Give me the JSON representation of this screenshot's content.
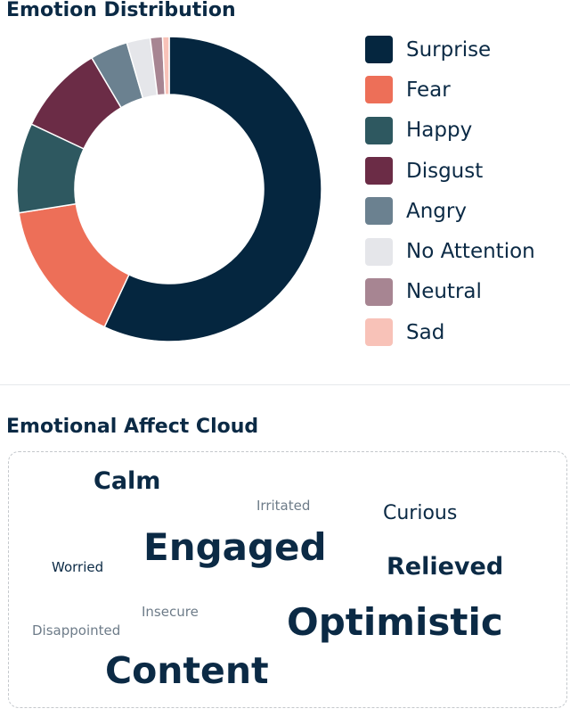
{
  "distribution": {
    "title": "Emotion Distribution"
  },
  "cloud": {
    "title": "Emotional Affect Cloud",
    "words": [
      {
        "text": "Calm"
      },
      {
        "text": "Irritated"
      },
      {
        "text": "Curious"
      },
      {
        "text": "Engaged"
      },
      {
        "text": "Relieved"
      },
      {
        "text": "Worried"
      },
      {
        "text": "Insecure"
      },
      {
        "text": "Optimistic"
      },
      {
        "text": "Disappointed"
      },
      {
        "text": "Content"
      }
    ]
  },
  "chart_data": {
    "type": "pie",
    "variant": "donut",
    "title": "Emotion Distribution",
    "legend_position": "right",
    "unit": "percent",
    "categories": [
      "Surprise",
      "Fear",
      "Happy",
      "Disgust",
      "Angry",
      "No Attention",
      "Neutral",
      "Sad"
    ],
    "values": [
      57.0,
      15.5,
      9.5,
      9.5,
      4.0,
      2.5,
      1.3,
      0.7
    ],
    "colors": [
      "#05263f",
      "#ed6f58",
      "#2e5860",
      "#6b2c46",
      "#6b8190",
      "#e5e6ea",
      "#a78592",
      "#f8c2b8"
    ]
  }
}
